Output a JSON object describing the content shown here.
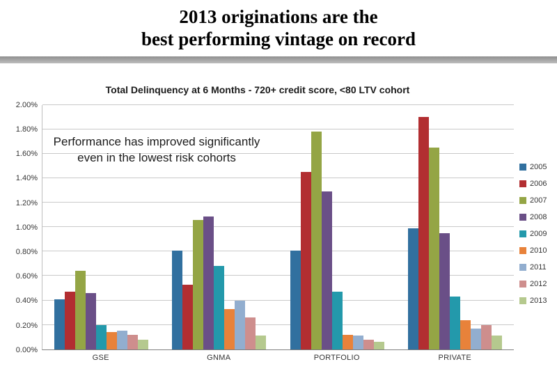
{
  "header": {
    "title_line1": "2013 originations are the",
    "title_line2": "best performing vintage on record"
  },
  "annotation": "Performance has improved significantly even in the lowest risk cohorts",
  "chart_data": {
    "type": "bar",
    "title": "Total Delinquency at 6 Months - 720+ credit score, <80 LTV cohort",
    "categories": [
      "GSE",
      "GNMA",
      "PORTFOLIO",
      "PRIVATE"
    ],
    "series": [
      {
        "name": "2005",
        "color": "#31709F",
        "values": [
          0.41,
          0.81,
          0.81,
          0.99
        ]
      },
      {
        "name": "2006",
        "color": "#B22E31",
        "values": [
          0.47,
          0.53,
          1.45,
          1.9
        ]
      },
      {
        "name": "2007",
        "color": "#94A545",
        "values": [
          0.64,
          1.06,
          1.78,
          1.65
        ]
      },
      {
        "name": "2008",
        "color": "#6A4F87",
        "values": [
          0.46,
          1.09,
          1.29,
          0.95
        ]
      },
      {
        "name": "2009",
        "color": "#2399AB",
        "values": [
          0.2,
          0.68,
          0.47,
          0.43
        ]
      },
      {
        "name": "2010",
        "color": "#E8823A",
        "values": [
          0.14,
          0.33,
          0.12,
          0.24
        ]
      },
      {
        "name": "2011",
        "color": "#92AECF",
        "values": [
          0.15,
          0.4,
          0.11,
          0.17
        ]
      },
      {
        "name": "2012",
        "color": "#CE8E8D",
        "values": [
          0.12,
          0.26,
          0.08,
          0.2
        ]
      },
      {
        "name": "2013",
        "color": "#B5C98E",
        "values": [
          0.08,
          0.11,
          0.06,
          0.11
        ]
      }
    ],
    "ylim": [
      0,
      2.0
    ],
    "ytick": 0.2,
    "y_format": "percent2",
    "grid": true,
    "legend_position": "right"
  }
}
